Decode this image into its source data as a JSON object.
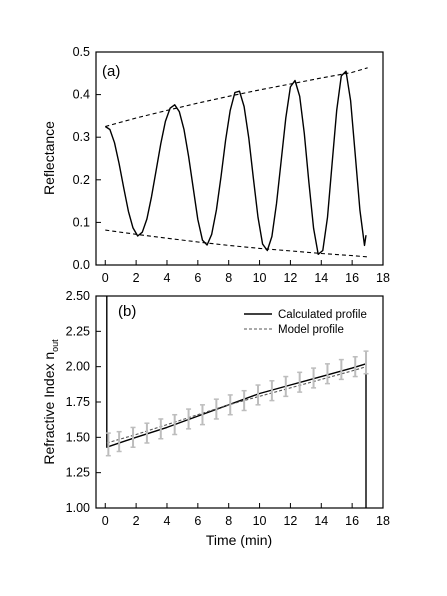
{
  "chart_data": [
    {
      "panel": "(a)",
      "type": "line",
      "ylabel": "Reflectance",
      "xlim": [
        -0.6,
        18
      ],
      "ylim": [
        0.0,
        0.5
      ],
      "xticks": [
        "0",
        "2",
        "4",
        "6",
        "8",
        "10",
        "12",
        "14",
        "16",
        "18"
      ],
      "yticks": [
        "0.0",
        "0.1",
        "0.2",
        "0.3",
        "0.4",
        "0.5"
      ],
      "series": [
        {
          "style": "solid",
          "x": [
            0.0,
            0.3,
            0.6,
            0.9,
            1.2,
            1.5,
            1.8,
            2.1,
            2.4,
            2.7,
            3.0,
            3.3,
            3.6,
            3.9,
            4.2,
            4.5,
            4.8,
            5.1,
            5.4,
            5.7,
            6.0,
            6.3,
            6.6,
            6.9,
            7.2,
            7.5,
            7.8,
            8.1,
            8.4,
            8.7,
            9.0,
            9.3,
            9.6,
            9.9,
            10.2,
            10.5,
            10.8,
            11.1,
            11.4,
            11.7,
            12.0,
            12.3,
            12.6,
            12.9,
            13.2,
            13.5,
            13.8,
            14.1,
            14.4,
            14.7,
            15.0,
            15.3,
            15.6,
            15.9,
            16.2,
            16.5,
            16.8,
            16.9
          ],
          "y": [
            0.325,
            0.318,
            0.287,
            0.238,
            0.18,
            0.126,
            0.087,
            0.068,
            0.077,
            0.108,
            0.16,
            0.223,
            0.285,
            0.337,
            0.368,
            0.376,
            0.36,
            0.318,
            0.255,
            0.181,
            0.107,
            0.058,
            0.047,
            0.072,
            0.129,
            0.207,
            0.293,
            0.363,
            0.405,
            0.408,
            0.372,
            0.298,
            0.203,
            0.112,
            0.049,
            0.034,
            0.067,
            0.144,
            0.245,
            0.345,
            0.418,
            0.433,
            0.396,
            0.309,
            0.194,
            0.086,
            0.025,
            0.034,
            0.112,
            0.238,
            0.363,
            0.444,
            0.455,
            0.386,
            0.26,
            0.129,
            0.046,
            0.07
          ]
        },
        {
          "style": "dashed",
          "x": [
            0,
            2,
            4,
            6,
            8,
            10,
            12,
            14,
            16,
            17
          ],
          "y": [
            0.325,
            0.345,
            0.363,
            0.38,
            0.396,
            0.411,
            0.425,
            0.439,
            0.452,
            0.463
          ]
        },
        {
          "style": "dashed",
          "x": [
            0,
            2,
            4,
            6,
            8,
            10,
            12,
            14,
            16,
            17
          ],
          "y": [
            0.082,
            0.072,
            0.063,
            0.054,
            0.046,
            0.039,
            0.033,
            0.027,
            0.022,
            0.019
          ]
        }
      ]
    },
    {
      "panel": "(b)",
      "type": "line",
      "xlabel": "Time (min)",
      "ylabel": "Refractive Index n",
      "ylabel_sub": "out",
      "xlim": [
        -0.6,
        18
      ],
      "ylim": [
        1.0,
        2.5
      ],
      "xticks": [
        "0",
        "2",
        "4",
        "6",
        "8",
        "10",
        "12",
        "14",
        "16",
        "18"
      ],
      "yticks": [
        "1.00",
        "1.25",
        "1.50",
        "1.75",
        "2.00",
        "2.25",
        "2.50"
      ],
      "legend_position": "top-right",
      "series": [
        {
          "name": "Calculated profile",
          "style": "solid",
          "x": [
            0.1,
            0.1,
            2,
            4,
            6,
            8,
            10,
            12,
            14,
            16,
            16.9,
            16.9
          ],
          "y": [
            2.5,
            1.43,
            1.5,
            1.57,
            1.65,
            1.73,
            1.81,
            1.87,
            1.93,
            1.99,
            2.02,
            1.0
          ]
        },
        {
          "name": "Model profile",
          "style": "dashed",
          "x": [
            0.1,
            2,
            4,
            6,
            8,
            10,
            12,
            14,
            16,
            16.9
          ],
          "y": [
            1.46,
            1.52,
            1.59,
            1.66,
            1.73,
            1.79,
            1.85,
            1.91,
            1.97,
            2.0
          ]
        },
        {
          "style": "errorbars",
          "x": [
            0.2,
            0.9,
            1.8,
            2.7,
            3.6,
            4.5,
            5.4,
            6.3,
            7.2,
            8.1,
            9.0,
            9.9,
            10.8,
            11.7,
            12.6,
            13.5,
            14.4,
            15.3,
            16.2,
            16.9
          ],
          "y": [
            1.45,
            1.47,
            1.5,
            1.53,
            1.56,
            1.59,
            1.63,
            1.66,
            1.7,
            1.73,
            1.76,
            1.8,
            1.83,
            1.86,
            1.89,
            1.92,
            1.95,
            1.98,
            2.0,
            2.03
          ],
          "err": [
            0.08,
            0.07,
            0.07,
            0.07,
            0.07,
            0.07,
            0.07,
            0.07,
            0.07,
            0.07,
            0.07,
            0.07,
            0.07,
            0.07,
            0.07,
            0.07,
            0.07,
            0.07,
            0.07,
            0.08
          ]
        }
      ]
    }
  ],
  "colors": {
    "line": "#000000",
    "errorbar": "#bdbdbd",
    "model": "#555555"
  }
}
